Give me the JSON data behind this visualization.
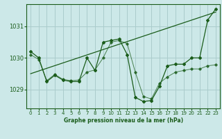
{
  "title": "Graphe pression niveau de la mer (hPa)",
  "background_color": "#cce8e8",
  "grid_color": "#aacccc",
  "line_color_dark": "#1a5c1a",
  "xlim": [
    -0.5,
    23.5
  ],
  "ylim": [
    1028.4,
    1031.7
  ],
  "yticks": [
    1029,
    1030,
    1031
  ],
  "xticks": [
    0,
    1,
    2,
    3,
    4,
    5,
    6,
    7,
    8,
    9,
    10,
    11,
    12,
    13,
    14,
    15,
    16,
    17,
    18,
    19,
    20,
    21,
    22,
    23
  ],
  "series_main": {
    "x": [
      0,
      1,
      2,
      3,
      4,
      5,
      6,
      7,
      8,
      9,
      10,
      11,
      12,
      13,
      14,
      15,
      16,
      17,
      18,
      19,
      20,
      21,
      22,
      23
    ],
    "y": [
      1030.2,
      1030.0,
      1029.25,
      1029.45,
      1029.3,
      1029.25,
      1029.25,
      1030.0,
      1029.6,
      1030.5,
      1030.55,
      1030.6,
      1030.1,
      1028.75,
      1028.62,
      1028.65,
      1029.1,
      1029.75,
      1029.8,
      1029.8,
      1030.0,
      1030.0,
      1031.2,
      1031.55
    ]
  },
  "series_secondary": {
    "x": [
      0,
      1,
      2,
      3,
      4,
      5,
      6,
      7,
      8,
      9,
      10,
      11,
      12,
      13,
      14,
      15,
      16,
      17,
      18,
      19,
      20,
      21,
      22,
      23
    ],
    "y": [
      1030.1,
      1029.95,
      1029.28,
      1029.48,
      1029.32,
      1029.28,
      1029.3,
      1029.55,
      1029.62,
      1030.0,
      1030.5,
      1030.55,
      1030.45,
      1029.55,
      1028.78,
      1028.7,
      1029.2,
      1029.4,
      1029.55,
      1029.6,
      1029.65,
      1029.65,
      1029.75,
      1029.78
    ]
  },
  "series_trend": {
    "x": [
      0,
      23
    ],
    "y": [
      1029.5,
      1031.45
    ]
  }
}
